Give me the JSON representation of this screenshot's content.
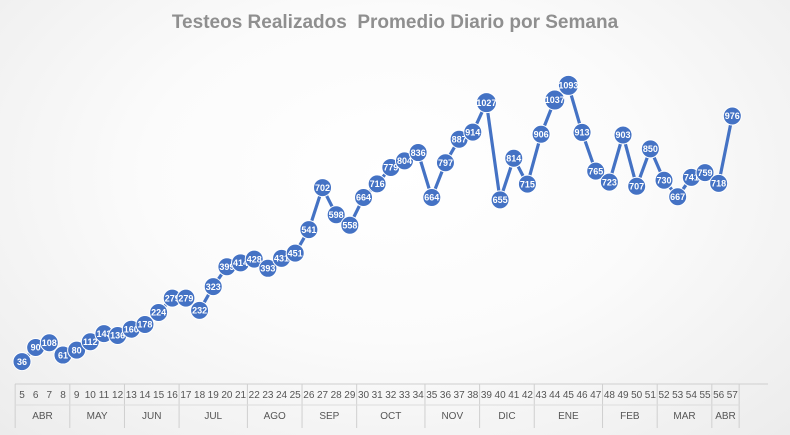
{
  "chart_data": {
    "type": "line",
    "title": "Testeos Realizados  Promedio Diario por Semana",
    "xlabel": "",
    "ylabel": "",
    "grid": false,
    "legend": "none",
    "line_color": "#4472c4",
    "x": [
      "5",
      "6",
      "7",
      "8",
      "9",
      "10",
      "11",
      "12",
      "13",
      "14",
      "15",
      "16",
      "17",
      "18",
      "19",
      "20",
      "21",
      "22",
      "23",
      "24",
      "25",
      "26",
      "27",
      "28",
      "29",
      "30",
      "31",
      "32",
      "33",
      "34",
      "35",
      "36",
      "37",
      "38",
      "39",
      "40",
      "41",
      "42",
      "43",
      "44",
      "45",
      "46",
      "47",
      "48",
      "49",
      "50",
      "51",
      "52",
      "53",
      "54",
      "55",
      "56",
      "57"
    ],
    "values": [
      36,
      90,
      108,
      61,
      80,
      112,
      143,
      136,
      160,
      178,
      224,
      279,
      279,
      232,
      323,
      399,
      414,
      428,
      393,
      431,
      451,
      541,
      702,
      598,
      558,
      664,
      716,
      779,
      804,
      836,
      664,
      797,
      887,
      914,
      1027,
      655,
      814,
      715,
      906,
      1037,
      1093,
      913,
      765,
      723,
      903,
      707,
      850,
      730,
      667,
      741,
      759,
      718,
      976
    ],
    "months": [
      {
        "label": "ABR",
        "start": 0,
        "end": 3
      },
      {
        "label": "MAY",
        "start": 4,
        "end": 7
      },
      {
        "label": "JUN",
        "start": 8,
        "end": 11
      },
      {
        "label": "JUL",
        "start": 12,
        "end": 16
      },
      {
        "label": "AGO",
        "start": 17,
        "end": 20
      },
      {
        "label": "SEP",
        "start": 21,
        "end": 24
      },
      {
        "label": "OCT",
        "start": 25,
        "end": 29
      },
      {
        "label": "NOV",
        "start": 30,
        "end": 33
      },
      {
        "label": "DIC",
        "start": 34,
        "end": 37
      },
      {
        "label": "ENE",
        "start": 38,
        "end": 42
      },
      {
        "label": "FEB",
        "start": 43,
        "end": 46
      },
      {
        "label": "MAR",
        "start": 47,
        "end": 50
      },
      {
        "label": "ABR",
        "start": 51,
        "end": 52
      }
    ]
  }
}
